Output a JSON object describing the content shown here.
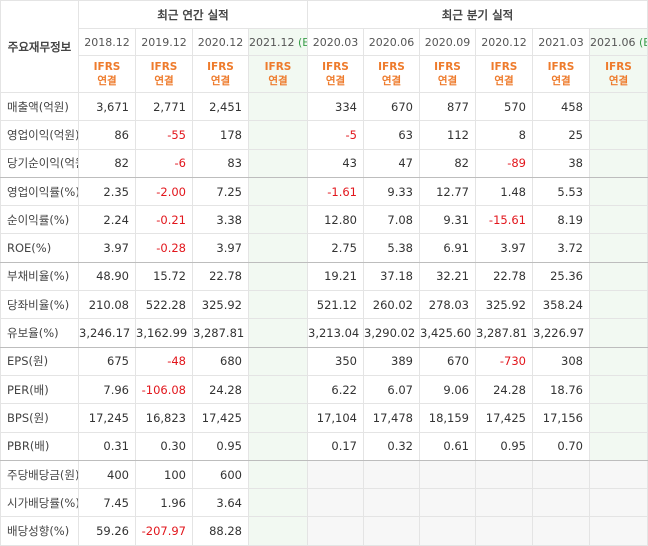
{
  "header": {
    "row_label": "주요재무정보",
    "annual_title": "최근 연간 실적",
    "quarter_title": "최근 분기 실적",
    "estimate_tag": "(E)",
    "ifrs_line1": "IFRS",
    "ifrs_line2": "연결"
  },
  "periods": {
    "annual": [
      "2018.12",
      "2019.12",
      "2020.12",
      "2021.12"
    ],
    "quarter": [
      "2020.03",
      "2020.06",
      "2020.09",
      "2020.12",
      "2021.03",
      "2021.06"
    ]
  },
  "rows": [
    {
      "label": "매출액(억원)",
      "annual": [
        "3,671",
        "2,771",
        "2,451",
        ""
      ],
      "quarter": [
        "334",
        "670",
        "877",
        "570",
        "458",
        ""
      ]
    },
    {
      "label": "영업이익(억원)",
      "annual": [
        "86",
        "-55",
        "178",
        ""
      ],
      "quarter": [
        "-5",
        "63",
        "112",
        "8",
        "25",
        ""
      ]
    },
    {
      "label": "당기순이익(억원)",
      "annual": [
        "82",
        "-6",
        "83",
        ""
      ],
      "quarter": [
        "43",
        "47",
        "82",
        "-89",
        "38",
        ""
      ]
    },
    {
      "label": "영업이익률(%)",
      "annual": [
        "2.35",
        "-2.00",
        "7.25",
        ""
      ],
      "quarter": [
        "-1.61",
        "9.33",
        "12.77",
        "1.48",
        "5.53",
        ""
      ]
    },
    {
      "label": "순이익률(%)",
      "annual": [
        "2.24",
        "-0.21",
        "3.38",
        ""
      ],
      "quarter": [
        "12.80",
        "7.08",
        "9.31",
        "-15.61",
        "8.19",
        ""
      ]
    },
    {
      "label": "ROE(%)",
      "annual": [
        "3.97",
        "-0.28",
        "3.97",
        ""
      ],
      "quarter": [
        "2.75",
        "5.38",
        "6.91",
        "3.97",
        "3.72",
        ""
      ]
    },
    {
      "label": "부채비율(%)",
      "annual": [
        "48.90",
        "15.72",
        "22.78",
        ""
      ],
      "quarter": [
        "19.21",
        "37.18",
        "32.21",
        "22.78",
        "25.36",
        ""
      ]
    },
    {
      "label": "당좌비율(%)",
      "annual": [
        "210.08",
        "522.28",
        "325.92",
        ""
      ],
      "quarter": [
        "521.12",
        "260.02",
        "278.03",
        "325.92",
        "358.24",
        ""
      ]
    },
    {
      "label": "유보율(%)",
      "annual": [
        "3,246.17",
        "3,162.99",
        "3,287.81",
        ""
      ],
      "quarter": [
        "3,213.04",
        "3,290.02",
        "3,425.60",
        "3,287.81",
        "3,226.97",
        ""
      ]
    },
    {
      "label": "EPS(원)",
      "annual": [
        "675",
        "-48",
        "680",
        ""
      ],
      "quarter": [
        "350",
        "389",
        "670",
        "-730",
        "308",
        ""
      ]
    },
    {
      "label": "PER(배)",
      "annual": [
        "7.96",
        "-106.08",
        "24.28",
        ""
      ],
      "quarter": [
        "6.22",
        "6.07",
        "9.06",
        "24.28",
        "18.76",
        ""
      ]
    },
    {
      "label": "BPS(원)",
      "annual": [
        "17,245",
        "16,823",
        "17,425",
        ""
      ],
      "quarter": [
        "17,104",
        "17,478",
        "18,159",
        "17,425",
        "17,156",
        ""
      ]
    },
    {
      "label": "PBR(배)",
      "annual": [
        "0.31",
        "0.30",
        "0.95",
        ""
      ],
      "quarter": [
        "0.17",
        "0.32",
        "0.61",
        "0.95",
        "0.70",
        ""
      ]
    },
    {
      "label": "주당배당금(원)",
      "annual": [
        "400",
        "100",
        "600",
        ""
      ],
      "quarter": [
        "",
        "",
        "",
        "",
        "",
        ""
      ]
    },
    {
      "label": "시가배당률(%)",
      "annual": [
        "7.45",
        "1.96",
        "3.64",
        ""
      ],
      "quarter": [
        "",
        "",
        "",
        "",
        "",
        ""
      ]
    },
    {
      "label": "배당성향(%)",
      "annual": [
        "59.26",
        "-207.97",
        "88.28",
        ""
      ],
      "quarter": [
        "",
        "",
        "",
        "",
        "",
        ""
      ]
    }
  ],
  "section_ends": [
    2,
    5,
    8,
    12
  ],
  "colors": {
    "negative": "#e2161c",
    "ifrs": "#ee7b2c",
    "estimate_bg": "#f2f9f2",
    "estimate_tag": "#3a9d4a"
  }
}
